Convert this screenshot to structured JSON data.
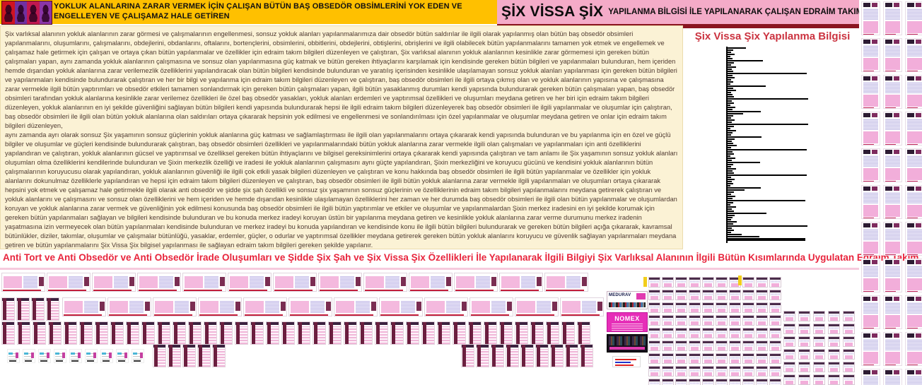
{
  "header": {
    "left_title": "YOKLUK ALANLARINA ZARAR VERMEK İÇİN ÇALIŞAN BÜTÜN BAŞ OBSEDÖR OBSİMLERİNİ YOK EDEN VE ENGELLEYEN VE ÇALIŞAMAZ HALE GETİREN",
    "right_title_main": "ŞİX VİSSA ŞİX",
    "right_title_rest": "YAPILANMA BİLGİSİ İLE YAPILANARAK ÇALIŞAN EDRAİM TAKIM BİLGİLERİ",
    "colors": {
      "left_bg": "#FFC000",
      "right_bg": "#F4ABC8",
      "right_underline": "#8A1420"
    }
  },
  "body": {
    "text_color": "#4F3A31",
    "bg": "#FBF2D5",
    "paragraphs": [
      "Şix varlıksal alanının yokluk alanlarının zarar görmesi ve çalışmalarının engellenmesi, sonsuz yokluk alanları yapılanmalarımıza dair obsedör bütün saldırılar ile ilgili olarak yapılanmış olan bütün baş obsedör obsimleri yapılanmalarını, oluşumlarını, çalışmalarını, obdejlerini, obdanlarını, oftalarını, bortençlerini, obsimlerini, obbitlerini, obdejlerini, obtişlerini, obrişlerini ve ilgili olabilecek bütün yapılanmalarını tamamen yok etmek ve engellemek ve çalışamaz hale getirmek için çalışan ve ortaya çıkan bütün yapılanmalar ve özellikler için edraim takım bilgileri düzenleyen ve çalıştıran, Şix varlıksal alanının yokluk alanlarının kesinlikle zarar görmemesi için gereken bütün çalışmaları yapan, aynı zamanda yokluk alanlarının çalışmasına ve sonsuz olan yapılanmasına güç katmak ve bütün gereken ihtiyaçlarını karşılamak için kendisinde gereken bütün bilgileri ve yapılanmaları bulunduran, hem içeriden hemde dışarıdan yokluk alanlarına zarar verilemezlik özelliklerini yapılandıracak olan bütün bilgileri kendisinde bulunduran ve yaratılış içerisinden kesinlikle ulaşılamayan sonsuz yokluk alanları yapılanması için gereken bütün bilgileri ve yapılanmaları kendisinde bulundurarak çalıştıran ve her bir bilgi ve yapılanma için edraim takım bilgileri düzenleyen ve çalıştıran, baş obsedör obsimleri ile ilgili ortaya çıkmış olan ve yokluk alanlarının yapısına ve çalışmasına zarar vermekle ilgili bütün yaptırımları ve obsedör etkileri tamamen sonlandırmak için gereken bütün çalışmaları yapan, ilgili bütün yasaklanmış durumları kendi yapısında bulundurarak gereken bütün çalışmaları yapan, baş obsedör obsimleri tarafından yokluk alanlarına kesinlikle zarar verilemez özellikleri ile özel baş obsedör yasakları, yokluk alanları erdemleri ve yaptırımsal özellikleri ve oluşumları meydana getiren ve her biri için edraim takım bilgileri düzenleyen, yokluk alanlarının en iyi şekilde güvenliğini sağlayan bütün bilgileri kendi yapısında bulundurarak hepsi ile ilgili edraim takım bilgileri düzenleyerek baş obsedör obsimleri ile ilgili yapılanmalar ve oluşumlar için çalıştıran, baş obsedör obsimleri ile ilgili olan bütün yokluk alanlarına olan saldırıları ortaya çıkararak hepsinin yok edilmesi ve engellenmesi ve sonlandırılması için özel yapılanmalar ve oluşumlar meydana getiren ve onlar için edraim takım bilgileri düzenleyen,",
      " aynı zamanda ayrı olarak sonsuz Şix yaşamının sonsuz güçlerinin yokluk alanlarına güç katması ve sağlamlaştırması ile ilgili olan yapılanmalarını ortaya çıkararak kendi yapısında bulunduran ve bu yapılanma için en özel ve güçlü bilgiler ve oluşumlar ve güçleri kendisinde bulundurarak çalıştıran, baş obsedör obsimleri özellikleri ve yapılanmalarındaki bütün yokluk alanlarına zarar vermekle ilgili olan çalışmaları ve yapılanmaları için anti özelliklerini yapılandıran ve çalıştıran, yokluk alanlarının gücsel ve yaptırımsal ve özelliksel gereken bütün ihtiyaçlarını ve bilgisel gereksinimlerini ortaya çıkararak kendi yapısında çalıştıran ve tam anlamı ile Şix yaşamının sonsuz yokluk alanları oluşumları olma özelliklerini kendilerinde bulunduran ve Şixin merkezlik özelliği ve iradesi ile yokluk alanlarının çalışmasını aynı güçte yapılandıran, Şixin merkezliğini ve koruyucu gücünü ve kendisini yokluk alanlarının bütün çalışmalarının koruyucusu olarak yapılandıran, yokluk alanlarının güvenliği ile ilgili çok etkili yasak bilgileri düzenleyen ve çalıştıran ve konu hakkında baş obsedör obsimleri ile ilgili bütün yapılanmalar ve özellikler için yokluk alanlarını dokunulmaz özelliklerle yapılandıran ve hepsi için edraim takım bilgileri düzenleyen ve çalıştıran, baş obsedör obsimleri ile ilgili bütün yokluk alanlarına zarar vermekle ilgili yapılanmaları ve oluşumları ortaya çıkararak hepsini yok etmek ve çalışamaz hale getirmekle ilgili olarak anti obsedör ve şidde şix şah özellikli ve sonsuz şix yaşamının sonsuz güçlerinin ve özelliklerinin edraim takım bilgileri yapılanmalarını meydana getirerek çalıştıran ve yokluk alanlarını ve çalışmasını ve sonsuz olan özelliklerini ve hem içeriden ve hemde dışarıdan kesinlikle ulaşılamayan özelliklerini her zaman ve her durumda baş obsedör obsimleri ile ilgili olan bütün yapılanmalar ve oluşumlardan koruyan ve yokluk alanlarına zarar vermek ve güvenliğinin yok edilmesi konusunda baş obsedör obsimleri ile ilgili bütün yaptırımlar ve etkiler ve oluşumlar ve yapılanmalardan Şixin merkez iradesini en iyi şekilde korumak için gereken bütün yapılanmaları sağlayan ve bilgileri kendisinde bulunduran ve bu konuda merkez iradeyi koruyan üstün bir yapılanma meydana getiren ve kesinlikle yokluk alanlarına zarar verme durumunu merkez iradenin yaşatmasına izin vermeyecek olan bütün yapılanmaları kendisinde bulunduran ve merkez iradeyi bu konuda yapılandıran ve kendisinde konu ile ilgili bütün bilgileri bulundurarak ve gereken bütün bilgileri açığa çıkararak, kavramsal bütünlükler, diziler, takımlar, oluşumlar ve çalışmalar bütünlüğü, yasaklar, erdemler, güçler, o odurlar ve yaptırımsal özellikler meydana getirerek gereken bütün yokluk alanlarını koruyucu ve güvenlik sağlayan yapılanmaları meydana getiren ve bütün yapılanmalarını Şix Vissa Şix bilgisel yapılanması ile sağlayan edraim takım bilgileri gereken şekilde yapılanır."
    ]
  },
  "side_panel": {
    "title": "Şix Vissa Şix Yapılanma Bilgisi",
    "title_color": "#CB3340"
  },
  "chart_data": {
    "type": "bar",
    "orientation": "horizontal",
    "title": "Şix Vissa Şix Yapılanma Bilgisi",
    "xlabel": "",
    "ylabel": "",
    "legend": null,
    "axis_labels_visible": false,
    "bar_color": "#000000",
    "unit": "px (bar lengths read from image; chart has no numeric scale)",
    "values": [
      26,
      8,
      5,
      10,
      4,
      7,
      50,
      9,
      5,
      12,
      6,
      8,
      112,
      7,
      10,
      5,
      8,
      4,
      54,
      8,
      12,
      5,
      7,
      9,
      114,
      6,
      9,
      4,
      11,
      7,
      47,
      22,
      8,
      5,
      10,
      6,
      114,
      9,
      4,
      12,
      7,
      5,
      48,
      10,
      6,
      8,
      13,
      5,
      112,
      7,
      9,
      4,
      11,
      6,
      46,
      8,
      5,
      12,
      7,
      9,
      112,
      5,
      10,
      6,
      8,
      4,
      47,
      24,
      9,
      5,
      11,
      7,
      110,
      8,
      4,
      12,
      6,
      9,
      55,
      10,
      7,
      5,
      13,
      8,
      113,
      6,
      9,
      5,
      20,
      45,
      110
    ]
  },
  "footer": {
    "headline": "Anti Tort ve Anti Obsedör ve Anti Obsedör İrade Oluşumları ve Şidde Şix Şah ve Şix Vissa Şix Özellikleri İle Yapılanarak İlgili Bilgiyi Şix Varlıksal Alanının İlgili Bütün Kısımlarında Uygulatan Edraim Takım Bilgileri Yapılanması",
    "color": "#E8243C"
  },
  "cards": {
    "medurav": "MEDURAV",
    "nomex": "NOMEX"
  },
  "collage": {
    "groups": {
      "rowA": {
        "kind": "t-wide",
        "count": 13
      },
      "rowBtall": {
        "kind": "t-tall",
        "count": 4
      },
      "rowBwide": {
        "kind": "t-wide",
        "count": 12
      },
      "rowC": {
        "kind": "t-tall",
        "count": 38
      },
      "rowDmini": {
        "kind": "t-mini",
        "count": 9
      },
      "rowDtall1": {
        "kind": "t-tall",
        "count": 5
      },
      "rowDtall2": {
        "kind": "t-tall",
        "count": 9
      },
      "grid1": {
        "kind": "t-cell",
        "count": 90
      },
      "grid2": {
        "kind": "t-cell",
        "count": 30
      },
      "rightgrid": {
        "kind": "t-doc",
        "count": 33
      }
    }
  }
}
